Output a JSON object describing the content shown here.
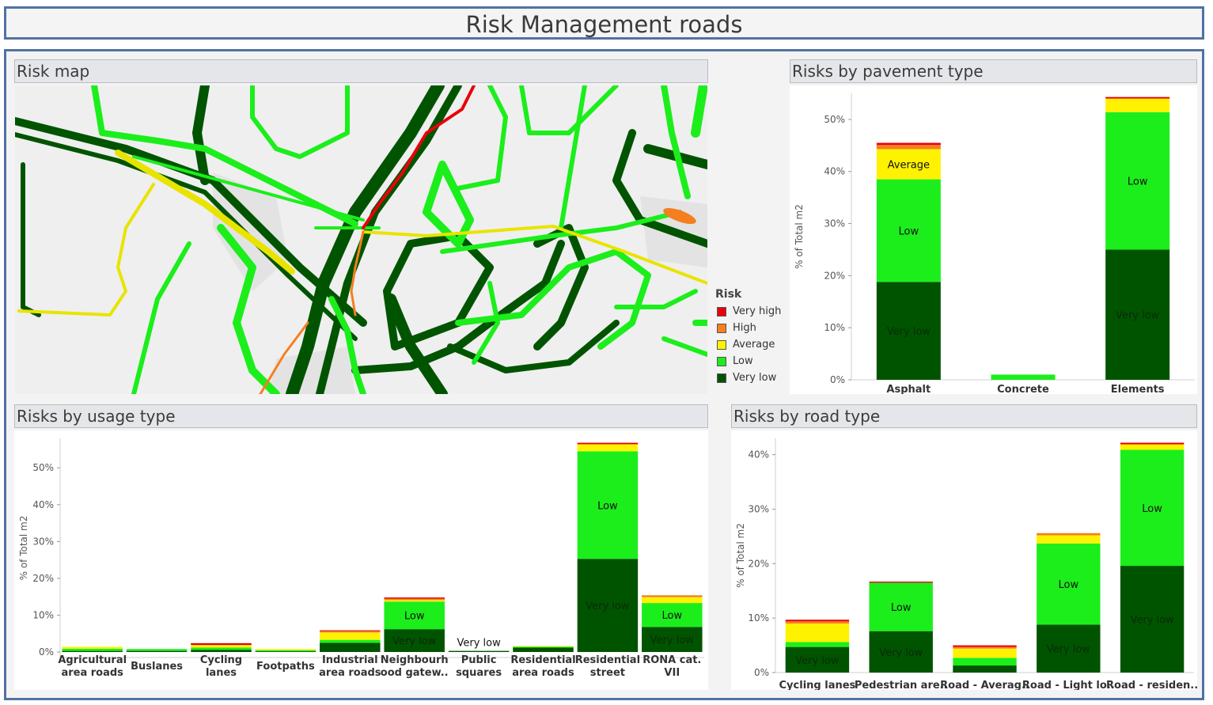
{
  "title": "Risk Management roads",
  "panels": {
    "map": "Risk map",
    "pavement": "Risks by pavement type",
    "usage": "Risks by usage type",
    "road": "Risks by road type"
  },
  "legend": {
    "title": "Risk",
    "items": [
      {
        "label": "Very high",
        "color": "#e8000b"
      },
      {
        "label": "High",
        "color": "#f57f20"
      },
      {
        "label": "Average",
        "color": "#fff200"
      },
      {
        "label": "Low",
        "color": "#1cee1c"
      },
      {
        "label": "Very low",
        "color": "#005400"
      }
    ]
  },
  "chart_data": [
    {
      "id": "pavement",
      "type": "bar",
      "stacked": true,
      "ylabel": "% of Total m2",
      "ylim": [
        0,
        55
      ],
      "yticks": [
        0,
        10,
        20,
        30,
        40,
        50
      ],
      "categories": [
        "Asphalt",
        "Concrete",
        "Elements"
      ],
      "series": [
        {
          "name": "Very low",
          "values": [
            18.8,
            0.0,
            25.0
          ]
        },
        {
          "name": "Low",
          "values": [
            19.7,
            1.0,
            26.4
          ]
        },
        {
          "name": "Average",
          "values": [
            5.8,
            0.0,
            2.6
          ]
        },
        {
          "name": "High",
          "values": [
            0.8,
            0.0,
            0.0
          ]
        },
        {
          "name": "Very high",
          "values": [
            0.4,
            0.0,
            0.3
          ]
        }
      ],
      "labels": [
        {
          "cat": 0,
          "series": "Very low",
          "text": "Very low"
        },
        {
          "cat": 0,
          "series": "Low",
          "text": "Low"
        },
        {
          "cat": 0,
          "series": "Average",
          "text": "Average"
        },
        {
          "cat": 2,
          "series": "Very low",
          "text": "Very low"
        },
        {
          "cat": 2,
          "series": "Low",
          "text": "Low"
        }
      ]
    },
    {
      "id": "usage",
      "type": "bar",
      "stacked": true,
      "ylabel": "% of Total m2",
      "ylim": [
        -1.5,
        58
      ],
      "yticks": [
        0,
        10,
        20,
        30,
        40,
        50
      ],
      "categories": [
        [
          "Agricultural",
          "area roads"
        ],
        [
          "Buslanes"
        ],
        [
          "Cycling",
          "lanes"
        ],
        [
          "Footpaths"
        ],
        [
          "Industrial",
          "area roads"
        ],
        [
          "Neighbourh",
          "ood gatew.."
        ],
        [
          "Public",
          "squares"
        ],
        [
          "Residential",
          "area roads"
        ],
        [
          "Residential",
          "street"
        ],
        [
          "RONA cat.",
          "VII"
        ]
      ],
      "series": [
        {
          "name": "Very low",
          "values": [
            0.3,
            0.3,
            0.6,
            0.2,
            2.5,
            6.2,
            0.3,
            1.2,
            25.3,
            6.8
          ]
        },
        {
          "name": "Low",
          "values": [
            0.6,
            0.5,
            0.6,
            0.3,
            0.8,
            7.5,
            0.0,
            0.3,
            29.2,
            6.5
          ]
        },
        {
          "name": "Average",
          "values": [
            0.5,
            0.0,
            0.7,
            0.3,
            2.0,
            0.4,
            0.0,
            0.1,
            1.9,
            1.6
          ]
        },
        {
          "name": "High",
          "values": [
            0.0,
            0.0,
            0.0,
            0.0,
            0.4,
            0.4,
            0.0,
            0.0,
            0.0,
            0.5
          ]
        },
        {
          "name": "Very high",
          "values": [
            0.0,
            0.0,
            0.5,
            0.0,
            0.2,
            0.3,
            0.0,
            0.0,
            0.4,
            0.0
          ]
        }
      ],
      "labels": [
        {
          "cat": 5,
          "series": "Very low",
          "text": "Very low"
        },
        {
          "cat": 5,
          "series": "Low",
          "text": "Low"
        },
        {
          "cat": 6,
          "series": "Very low",
          "text": "Very low",
          "above": true
        },
        {
          "cat": 8,
          "series": "Very low",
          "text": "Very low"
        },
        {
          "cat": 8,
          "series": "Low",
          "text": "Low"
        },
        {
          "cat": 9,
          "series": "Very low",
          "text": "Very low"
        },
        {
          "cat": 9,
          "series": "Low",
          "text": "Low"
        }
      ]
    },
    {
      "id": "road",
      "type": "bar",
      "stacked": true,
      "ylabel": "% of Total m2",
      "ylim": [
        0,
        43
      ],
      "yticks": [
        0,
        10,
        20,
        30,
        40
      ],
      "categories": [
        [
          "Cycling lanes"
        ],
        [
          "Pedestrian are.."
        ],
        [
          "Road - Averag.."
        ],
        [
          "Road - Light lo.."
        ],
        [
          "Road - residen.."
        ]
      ],
      "series": [
        {
          "name": "Very low",
          "values": [
            4.7,
            7.6,
            1.3,
            8.8,
            19.6
          ]
        },
        {
          "name": "Low",
          "values": [
            0.9,
            8.9,
            1.4,
            14.9,
            21.3
          ]
        },
        {
          "name": "Average",
          "values": [
            3.4,
            0.0,
            1.7,
            1.5,
            1.0
          ]
        },
        {
          "name": "High",
          "values": [
            0.4,
            0.0,
            0.3,
            0.4,
            0.0
          ]
        },
        {
          "name": "Very high",
          "values": [
            0.3,
            0.2,
            0.3,
            0.0,
            0.3
          ]
        }
      ],
      "labels": [
        {
          "cat": 0,
          "series": "Very low",
          "text": "Very low"
        },
        {
          "cat": 1,
          "series": "Very low",
          "text": "Very low"
        },
        {
          "cat": 1,
          "series": "Low",
          "text": "Low"
        },
        {
          "cat": 3,
          "series": "Very low",
          "text": "Very low"
        },
        {
          "cat": 3,
          "series": "Low",
          "text": "Low"
        },
        {
          "cat": 4,
          "series": "Very low",
          "text": "Very low"
        },
        {
          "cat": 4,
          "series": "Low",
          "text": "Low"
        }
      ]
    }
  ]
}
